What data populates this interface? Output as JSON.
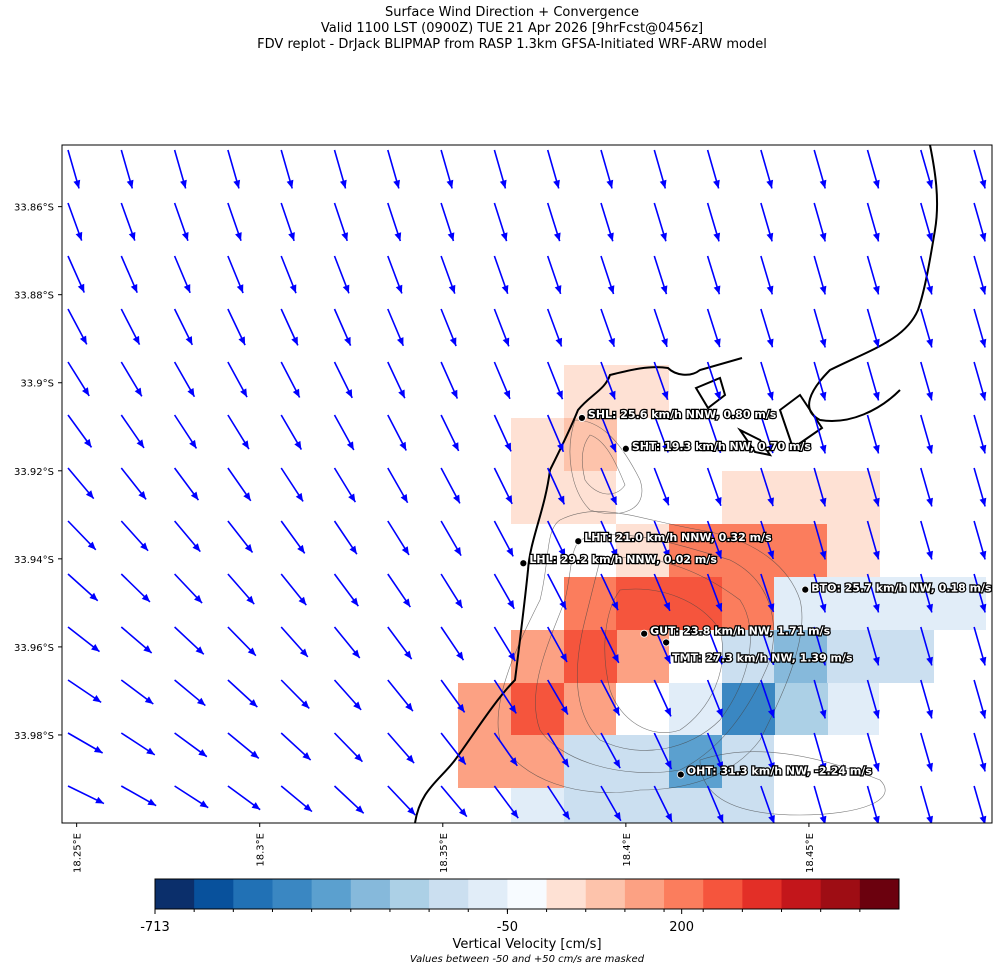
{
  "title": [
    "Surface Wind Direction + Convergence",
    "Valid 1100 LST (0900Z) TUE 21 Apr 2026 [9hrFcst@0456z]",
    "FDV replot - DrJack BLIPMAP from RASP 1.3km GFSA-Initiated WRF-ARW model"
  ],
  "map": {
    "xlim": [
      18.246,
      18.5
    ],
    "ylim": [
      -34.0,
      -33.846
    ],
    "xticks": [
      {
        "value": 18.25,
        "label": "18.25°E"
      },
      {
        "value": 18.3,
        "label": "18.3°E"
      },
      {
        "value": 18.35,
        "label": "18.35°E"
      },
      {
        "value": 18.4,
        "label": "18.4°E"
      },
      {
        "value": 18.45,
        "label": "18.45°E"
      }
    ],
    "yticks": [
      {
        "value": -33.86,
        "label": "33.86°S"
      },
      {
        "value": -33.88,
        "label": "33.88°S"
      },
      {
        "value": -33.9,
        "label": "33.9°S"
      },
      {
        "value": -33.92,
        "label": "33.92°S"
      },
      {
        "value": -33.94,
        "label": "33.94°S"
      },
      {
        "value": -33.96,
        "label": "33.96°S"
      },
      {
        "value": -33.98,
        "label": "33.98°S"
      }
    ],
    "arrow_color": "#0000ff"
  },
  "stations": [
    {
      "label": "SHL: 25.6 km/h NNW, 0.80 m/s",
      "lon": 18.388,
      "lat": -33.908
    },
    {
      "label": "SHT: 19.3 km/h NW, 0.70 m/s",
      "lon": 18.4,
      "lat": -33.915
    },
    {
      "label": "LHT: 21.0 km/h NNW, 0.32 m/s",
      "lon": 18.387,
      "lat": -33.936
    },
    {
      "label": "LHL: 29.2 km/h NNW, 0.02 m/s",
      "lon": 18.372,
      "lat": -33.941
    },
    {
      "label": "BTO: 25.7 km/h NW, 0.18 m/s",
      "lon": 18.449,
      "lat": -33.947
    },
    {
      "label": "GUT: 23.8 km/h NW, 1.71 m/s",
      "lon": 18.405,
      "lat": -33.957
    },
    {
      "label": "TMT: 27.3 km/h NW, 1.39 m/s",
      "lon": 18.411,
      "lat": -33.959
    },
    {
      "label": "OHT: 31.3 km/h NW, -2.24 m/s",
      "lon": 18.415,
      "lat": -33.989
    }
  ],
  "colorbar": {
    "ticks": [
      -713,
      -50,
      200
    ],
    "label": "Vertical Velocity [cm/s]",
    "note": "Values between -50 and +50 cm/s are masked",
    "colors": [
      "#0b2f6b",
      "#08519c",
      "#2171b5",
      "#3a87c2",
      "#5ba0cf",
      "#86b9db",
      "#acd0e6",
      "#cbdff0",
      "#e1edf8",
      "#f7fbff",
      "#fee1d4",
      "#fdc3ab",
      "#fca183",
      "#fb7d5d",
      "#f5553d",
      "#e32f27",
      "#c3161b",
      "#9e0d14",
      "#6b010e"
    ]
  }
}
